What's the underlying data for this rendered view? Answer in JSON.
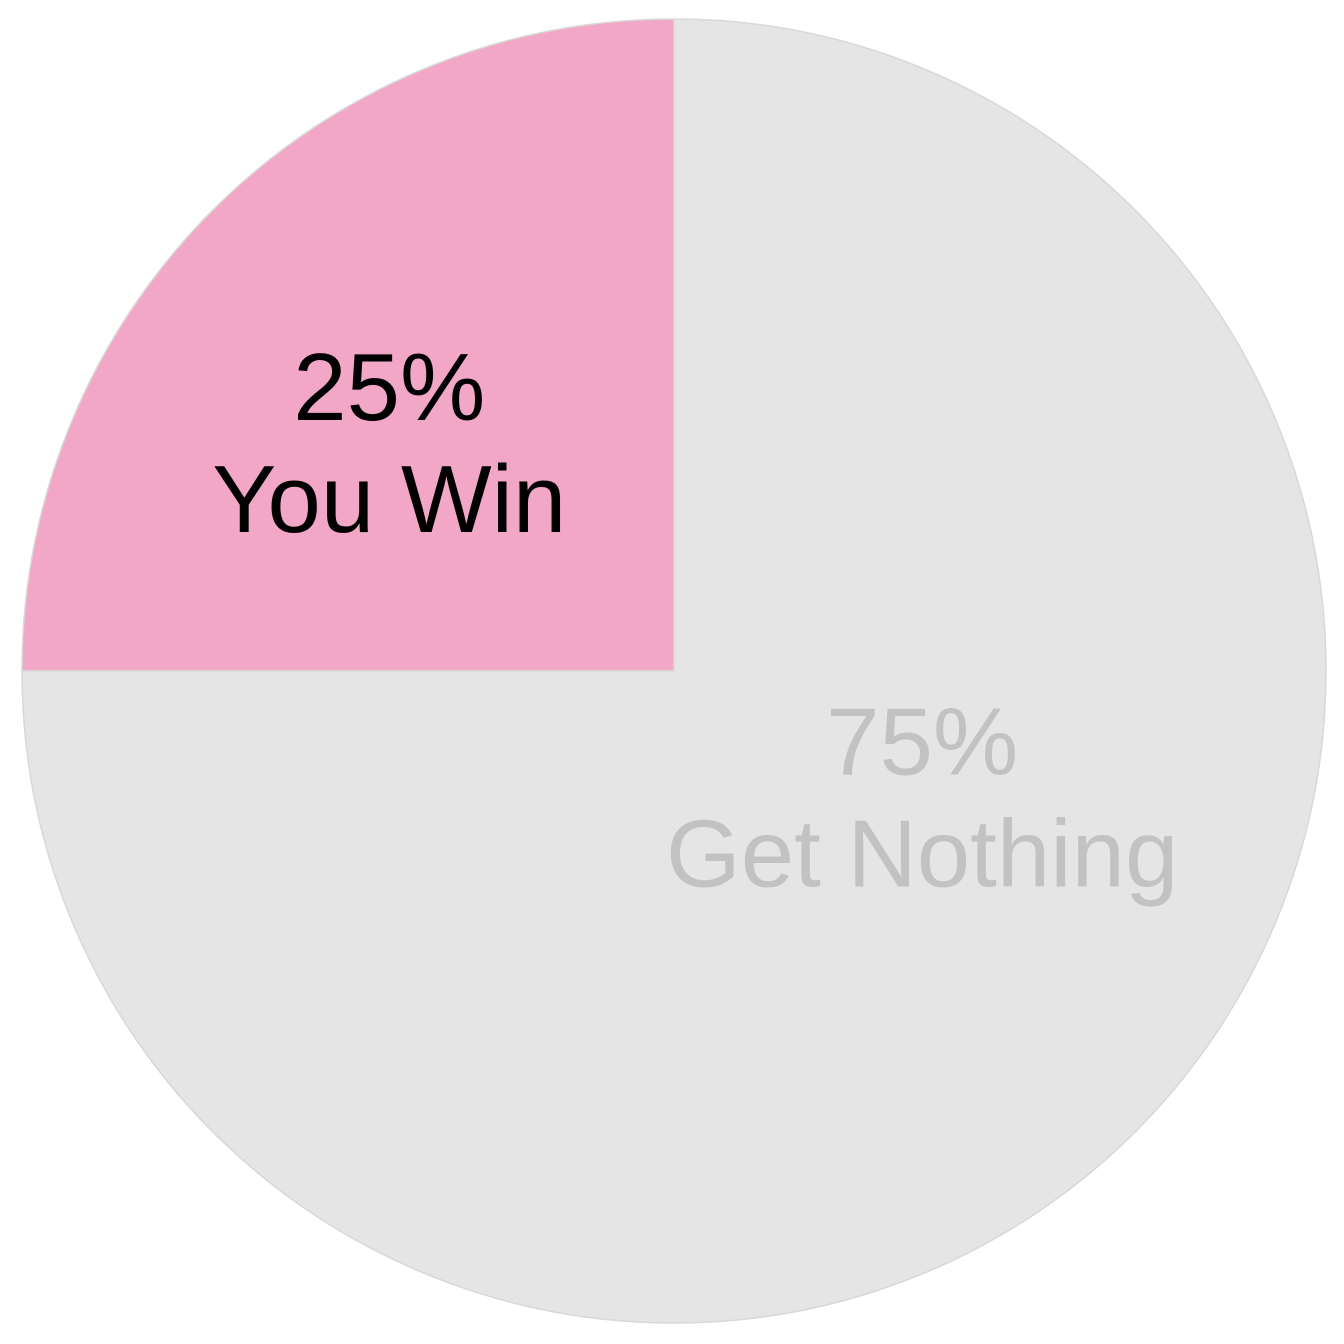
{
  "chart_data": {
    "type": "pie",
    "title": "",
    "start_angle_deg": -90,
    "direction": "counterclockwise",
    "slices": [
      {
        "name": "You Win",
        "value": 25,
        "percent_label": "25%",
        "text_label": "You Win",
        "color": "#f1a7c5",
        "label_color": "#000000",
        "slug": "you-win"
      },
      {
        "name": "Get Nothing",
        "value": 75,
        "percent_label": "75%",
        "text_label": "Get Nothing",
        "color": "#e5e5e5",
        "label_color": "#c2c2c2",
        "slug": "get-nothing"
      }
    ]
  }
}
